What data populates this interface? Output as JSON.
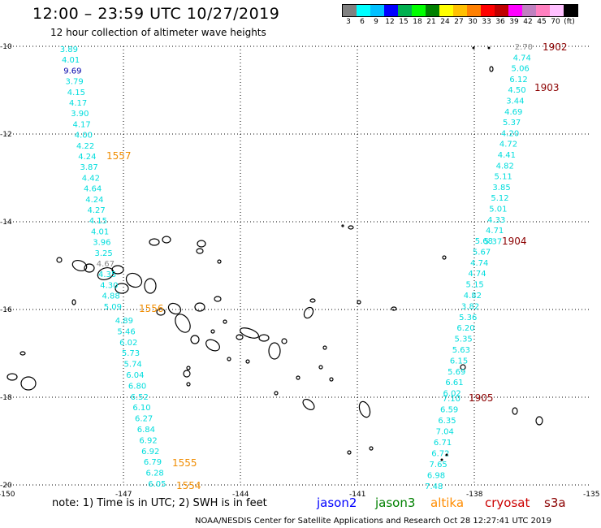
{
  "header": {
    "title": "12:00 – 23:59 UTC 10/27/2019",
    "subtitle": "12 hour collection of altimeter wave heights"
  },
  "legend": {
    "colors": [
      "#808080",
      "#00ffff",
      "#00c0ff",
      "#0000ff",
      "#00b050",
      "#00ff00",
      "#008000",
      "#ffff00",
      "#ffc000",
      "#ff8000",
      "#ff0000",
      "#c00000",
      "#ff00ff",
      "#c080c0",
      "#ff80c0",
      "#ffc0ff",
      "#000000"
    ],
    "labels": [
      "3",
      "6",
      "9",
      "12",
      "15",
      "18",
      "21",
      "24",
      "27",
      "30",
      "33",
      "36",
      "39",
      "42",
      "45",
      "70",
      "(ft)"
    ]
  },
  "axes": {
    "lat_labels": [
      "-10",
      "-12",
      "-14",
      "-16",
      "-18",
      "-20"
    ],
    "lon_labels": [
      "-150",
      "-147",
      "-144",
      "-141",
      "-138",
      "-135"
    ]
  },
  "colors": {
    "cyan": "#00dddd",
    "orange": "#f08c00",
    "darkred": "#8b0000",
    "navy": "#0000aa",
    "grey": "#888888"
  },
  "track_1557": {
    "label": "1557",
    "values": [
      "3.89",
      "4.01",
      "9.69",
      "3.79",
      "4.15",
      "4.17",
      "3.90",
      "4.17",
      "4.00",
      "4.22",
      "4.24",
      "3.87",
      "4.42",
      "4.64",
      "4.24",
      "4.27",
      "4.15",
      "4.01",
      "3.96",
      "3.25",
      "4.67",
      "4.35",
      "4.30",
      "4.88",
      "5.09"
    ]
  },
  "track_1556": {
    "label": "1556",
    "values": [
      "4.89",
      "5.46",
      "6.02",
      "5.73",
      "5.74",
      "6.04",
      "6.80",
      "6.52",
      "6.10",
      "6.27",
      "6.84",
      "6.92",
      "6.92",
      "6.79",
      "6.28",
      "6.05"
    ]
  },
  "pass_labels": {
    "p1555": "1555",
    "p1554": "1554"
  },
  "track_1902": {
    "label": "1902",
    "values": [
      "2.70",
      "4.74",
      "5.06",
      "6.12",
      "4.50",
      "3.44",
      "4.69",
      "5.37",
      "4.20",
      "4.72",
      "4.41",
      "4.82",
      "5.11",
      "3.85",
      "5.12",
      "5.01",
      "4.33",
      "4.71",
      "5.37"
    ]
  },
  "track_1903": {
    "label": "1903"
  },
  "track_1904": {
    "label": "1904",
    "values": [
      "5.68",
      "5.67",
      "4.74",
      "4.74",
      "5.15",
      "4.82",
      "3.82",
      "5.36",
      "6.20",
      "5.35",
      "5.63",
      "6.15",
      "5.69",
      "6.61",
      "6.02"
    ]
  },
  "track_1905": {
    "label": "1905",
    "values": [
      "7.10",
      "6.59",
      "6.35",
      "7.04",
      "6.71",
      "6.72",
      "7.65",
      "6.98",
      "7.48"
    ]
  },
  "footer": {
    "note": "note:  1) Time is in UTC;  2) SWH is in feet",
    "satellites": [
      "jason2",
      "jason3",
      "altika",
      "cryosat",
      "s3a"
    ],
    "sat_colors": [
      "#0000ff",
      "#008000",
      "#ff8c00",
      "#cc0000",
      "#8b0000"
    ],
    "credit": "NOAA/NESDIS Center for Satellite Applications and Research    Oct 28 12:27:41 UTC 2019"
  }
}
